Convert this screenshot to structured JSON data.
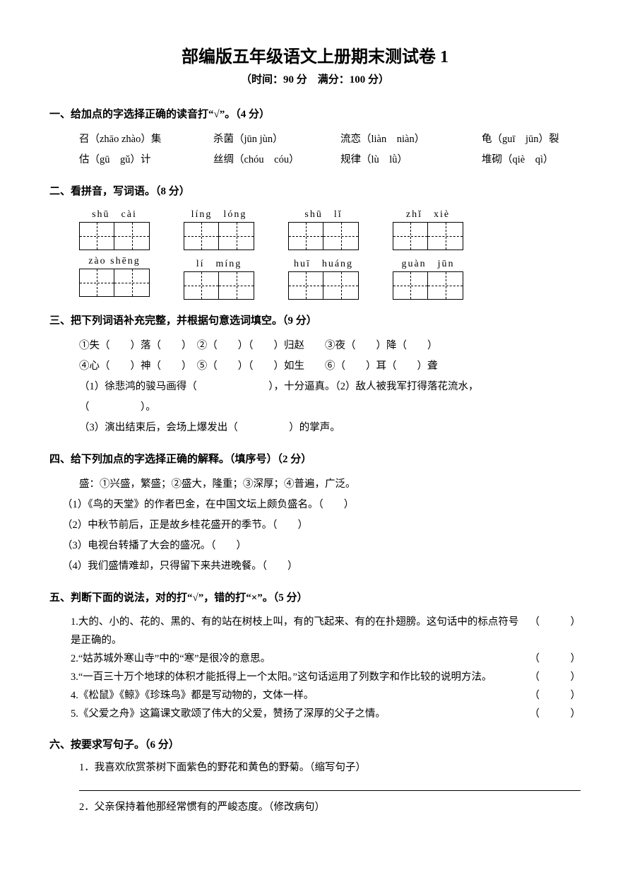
{
  "title": "部编版五年级语文上册期末测试卷 1",
  "subtitle": "（时间：90 分　满分：100 分）",
  "sections": {
    "s1": {
      "header": "一、给加点的字选择正确的读音打“√”。（4 分）",
      "row1": {
        "c1": "召（zhāo zhào）集",
        "c2": "杀菌（jūn jùn）",
        "c3": "流恋（liàn　niàn）",
        "c4": "龟（guī　jūn）裂"
      },
      "row2": {
        "c1": "估（gū　gǔ）计",
        "c2": "丝绸（chóu　cóu）",
        "c3": "规律（lù　lǜ）",
        "c4": "堆砌（qiè　qì）"
      }
    },
    "s2": {
      "header": "二、看拼音，写词语。（8 分）",
      "row1": [
        "shū　cài",
        "líng　lóng",
        "shū　lǐ",
        "zhǐ　xiè"
      ],
      "row2": [
        "zào shēng",
        "lí　míng",
        "huī　huáng",
        "guàn　jūn"
      ]
    },
    "s3": {
      "header": "三、把下列词语补充完整，并根据句意选词填空。（9 分）",
      "l1": "①失（　　）落（　　）　②（　　）（　　）归赵　　③夜（　　）降（　　）",
      "l2": "④心（　　）神（　　）　⑤（　　）（　　）如生　　⑥（　　）耳（　　）聋",
      "l3": "（1）徐悲鸿的骏马画得（　　　　　　　），十分逼真。（2）敌人被我军打得落花流水，",
      "l4": "（　　　　　）。",
      "l5": "（3）演出结束后，会场上爆发出（　　　　　）的掌声。"
    },
    "s4": {
      "header": "四、给下列加点的字选择正确的解释。（填序号）（2 分）",
      "l1": "盛：①兴盛，繁盛；②盛大，隆重；③深厚；④普遍，广泛。",
      "l2": "（1）《鸟的天堂》的作者巴金，在中国文坛上颇负盛名。（　　）",
      "l3": "（2）中秋节前后，正是故乡桂花盛开的季节。（　　）",
      "l4": "（3）电视台转播了大会的盛况。（　　）",
      "l5": "（4）我们盛情难却，只得留下来共进晚餐。（　　）"
    },
    "s5": {
      "header": "五、判断下面的说法，对的打“√”，错的打“×”。（5 分）",
      "items": [
        {
          "n": "1.",
          "t": "大的、小的、花的、黑的、有的站在树枝上叫，有的飞起来、有的在扑翅膀。这句话中的标点符号是正确的。"
        },
        {
          "n": "2.",
          "t": "“姑苏城外寒山寺”中的“寒”是很冷的意思。"
        },
        {
          "n": "3.",
          "t": "“一百三十万个地球的体积才能抵得上一个太阳。”这句话运用了列数字和作比较的说明方法。"
        },
        {
          "n": "4.",
          "t": "《松鼠》《鲸》《珍珠鸟》都是写动物的，文体一样。"
        },
        {
          "n": "5.",
          "t": "《父爱之舟》这篇课文歌颂了伟大的父爱，赞扬了深厚的父子之情。"
        }
      ],
      "paren": "（　　　）"
    },
    "s6": {
      "header": "六、按要求写句子。（6 分）",
      "l1": "1．我喜欢欣赏茶树下面紫色的野花和黄色的野菊。（缩写句子）",
      "l2": "2．父亲保持着他那经常惯有的严峻态度。（修改病句）"
    }
  }
}
